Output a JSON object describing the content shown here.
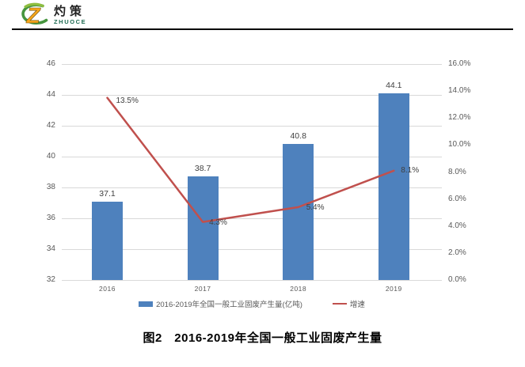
{
  "logo": {
    "name_cn": "灼策",
    "name_en": "ZHUOCE"
  },
  "legend": {
    "bars": "2016-2019年全国一般工业固废产生量(亿吨)",
    "line": "增速"
  },
  "caption": "图2　2016-2019年全国一般工业固废产生量",
  "colors": {
    "bar": "#4e81bd",
    "line": "#c0504d",
    "grid": "#d9d9d9",
    "axis_text": "#595959",
    "label_text": "#404040",
    "logo_orange": "#f7a61b",
    "logo_green": "#46953e",
    "logo_en_green": "#1e6b52"
  },
  "chart_data": {
    "type": "bar+line",
    "title": "图2　2016-2019年全国一般工业固废产生量",
    "categories": [
      "2016",
      "2017",
      "2018",
      "2019"
    ],
    "series": [
      {
        "name": "2016-2019年全国一般工业固废产生量(亿吨)",
        "type": "bar",
        "axis": "left",
        "values": [
          37.1,
          38.7,
          40.8,
          44.1
        ],
        "labels": [
          "37.1",
          "38.7",
          "40.8",
          "44.1"
        ]
      },
      {
        "name": "增速",
        "type": "line",
        "axis": "right",
        "values": [
          13.5,
          4.3,
          5.4,
          8.1
        ],
        "labels": [
          "13.5%",
          "4.3%",
          "5.4%",
          "8.1%"
        ]
      }
    ],
    "left_axis": {
      "min": 32,
      "max": 46,
      "step": 2,
      "tick_labels": [
        "46",
        "44",
        "42",
        "40",
        "38",
        "36",
        "34",
        "32"
      ]
    },
    "right_axis": {
      "min": 0,
      "max": 16,
      "step": 2,
      "tick_labels": [
        "16.0%",
        "14.0%",
        "12.0%",
        "10.0%",
        "8.0%",
        "6.0%",
        "4.0%",
        "2.0%",
        "0.0%"
      ]
    },
    "grid": true,
    "legend_position": "bottom"
  }
}
